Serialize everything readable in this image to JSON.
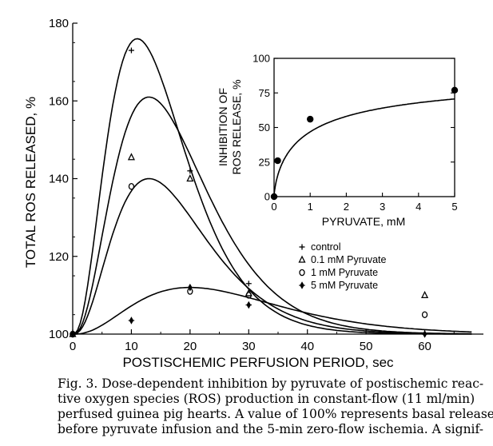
{
  "chart_data": [
    {
      "type": "line",
      "xlabel": "POSTISCHEMIC PERFUSION PERIOD, sec",
      "ylabel": "TOTAL ROS RELEASED, %",
      "xlim": [
        0,
        70
      ],
      "ylim": [
        100,
        180
      ],
      "xticks": [
        0,
        10,
        20,
        30,
        40,
        50,
        60
      ],
      "yticks": [
        100,
        120,
        140,
        160,
        180
      ],
      "grid": false,
      "legend_position": "center-right",
      "series": [
        {
          "name": "control",
          "marker": "plus",
          "x": [
            0,
            10,
            20,
            30,
            60
          ],
          "y": [
            100,
            173,
            142,
            113,
            100
          ],
          "curve": {
            "peak_x": 11,
            "peak_y": 176,
            "decay_end_x": 68
          }
        },
        {
          "name": "0.1 mM Pyruvate",
          "marker": "triangle",
          "x": [
            0,
            10,
            20,
            30,
            60
          ],
          "y": [
            100,
            145.5,
            140,
            110.5,
            110
          ],
          "curve": {
            "peak_x": 13,
            "peak_y": 161,
            "decay_end_x": 68
          }
        },
        {
          "name": "1 mM Pyruvate",
          "marker": "circle",
          "x": [
            0,
            10,
            20,
            30,
            60
          ],
          "y": [
            100,
            138,
            111,
            110,
            105
          ],
          "curve": {
            "peak_x": 13,
            "peak_y": 140,
            "decay_end_x": 68
          }
        },
        {
          "name": "5 mM Pyruvate",
          "marker": "diamond",
          "x": [
            0,
            10,
            20,
            30,
            60
          ],
          "y": [
            100,
            103.5,
            112,
            107.5,
            100
          ],
          "curve": {
            "peak_x": 20,
            "peak_y": 112,
            "decay_end_x": 68
          }
        }
      ]
    },
    {
      "type": "line",
      "xlabel": "PYRUVATE, mM",
      "ylabel": [
        "INHIBITION OF",
        "ROS RELEASE, %"
      ],
      "xlim": [
        0,
        5
      ],
      "ylim": [
        0,
        100
      ],
      "xticks": [
        0,
        1,
        2,
        3,
        4,
        5
      ],
      "yticks": [
        0,
        25,
        50,
        75,
        100
      ],
      "grid": false,
      "series": [
        {
          "marker": "filled-circle",
          "x": [
            0,
            0.1,
            1,
            5
          ],
          "y": [
            0,
            26,
            56,
            77
          ]
        }
      ]
    }
  ],
  "caption": {
    "lines": [
      "Fig. 3. Dose-dependent inhibition by pyruvate of postischemic reac-",
      "tive oxygen species (ROS) production in constant-flow (11 ml/min)",
      "perfused guinea pig hearts. A value of 100% represents basal release",
      "before pyruvate infusion and the 5-min zero-flow ischemia. A signif-"
    ]
  }
}
